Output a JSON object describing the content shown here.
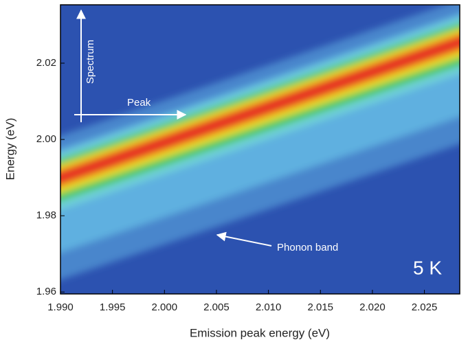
{
  "chart_data": {
    "type": "heatmap",
    "xlabel": "Emission peak energy (eV)",
    "ylabel": "Energy (eV)",
    "x": [
      1.99,
      2.0284
    ],
    "values": [
      1.989,
      2.027
    ],
    "xlim": [
      1.99,
      2.0284
    ],
    "ylim": [
      1.9595,
      2.0353
    ],
    "xticks": [
      {
        "value": 1.99,
        "label": "1.990"
      },
      1.995,
      {
        "value": 2,
        "label": "2.000"
      },
      2.005,
      {
        "value": 2.01,
        "label": "2.010"
      },
      2.015,
      {
        "value": 2.02,
        "label": "2.020"
      },
      2.025
    ],
    "yticks": [
      1.96,
      1.98,
      {
        "value": 2,
        "label": "2.00"
      },
      2.02
    ],
    "annotations": {
      "spectrum": "Spectrum",
      "peak": "Peak",
      "phonon": "Phonon band",
      "temperature": "5 K"
    }
  }
}
